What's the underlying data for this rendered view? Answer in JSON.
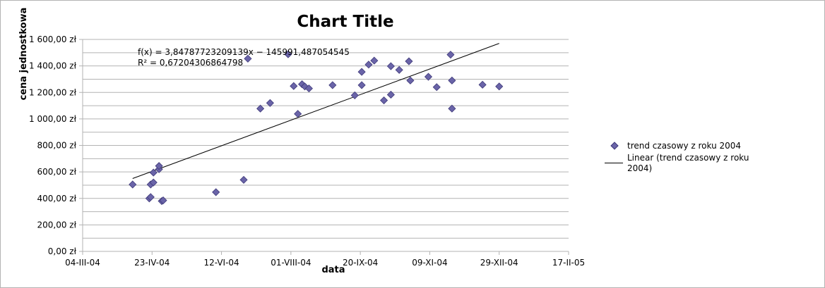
{
  "chart_data": {
    "type": "scatter",
    "title": "Chart Title",
    "xlabel": "data",
    "ylabel": "cena jednostkowa",
    "x_ticks": [
      "04-III-04",
      "23-IV-04",
      "12-VI-04",
      "01-VIII-04",
      "20-IX-04",
      "09-XI-04",
      "29-XII-04",
      "17-II-05"
    ],
    "x_tick_values": [
      "2004-03-04",
      "2004-04-23",
      "2004-06-12",
      "2004-08-01",
      "2004-09-20",
      "2004-11-09",
      "2004-12-29",
      "2005-02-17"
    ],
    "xlim": [
      "2004-03-04",
      "2005-02-17"
    ],
    "y_ticks": [
      "0,00 zł",
      "200,00 zł",
      "400,00 zł",
      "600,00 zł",
      "800,00 zł",
      "1 000,00 zł",
      "1 200,00 zł",
      "1 400,00 zł",
      "1 600,00 zł"
    ],
    "ylim": [
      0,
      1600
    ],
    "grid": "horizontal",
    "legend": "right",
    "series": [
      {
        "name": "trend czasowy z roku 2004",
        "color": "#6a64a8",
        "marker": "diamond",
        "points": [
          [
            "2004-04-09",
            505
          ],
          [
            "2004-04-21",
            400
          ],
          [
            "2004-04-22",
            410
          ],
          [
            "2004-04-22",
            505
          ],
          [
            "2004-04-24",
            520
          ],
          [
            "2004-04-24",
            595
          ],
          [
            "2004-04-28",
            620
          ],
          [
            "2004-04-28",
            645
          ],
          [
            "2004-04-30",
            380
          ],
          [
            "2004-05-01",
            385
          ],
          [
            "2004-06-08",
            447
          ],
          [
            "2004-06-28",
            540
          ],
          [
            "2004-07-01",
            1455
          ],
          [
            "2004-07-10",
            1078
          ],
          [
            "2004-07-17",
            1120
          ],
          [
            "2004-07-30",
            1488
          ],
          [
            "2004-08-03",
            1248
          ],
          [
            "2004-08-06",
            1038
          ],
          [
            "2004-08-09",
            1262
          ],
          [
            "2004-08-11",
            1245
          ],
          [
            "2004-08-14",
            1230
          ],
          [
            "2004-08-31",
            1255
          ],
          [
            "2004-09-16",
            1178
          ],
          [
            "2004-09-21",
            1255
          ],
          [
            "2004-09-21",
            1355
          ],
          [
            "2004-09-26",
            1410
          ],
          [
            "2004-09-30",
            1440
          ],
          [
            "2004-10-07",
            1140
          ],
          [
            "2004-10-12",
            1183
          ],
          [
            "2004-10-12",
            1398
          ],
          [
            "2004-10-18",
            1370
          ],
          [
            "2004-10-25",
            1435
          ],
          [
            "2004-10-26",
            1290
          ],
          [
            "2004-11-08",
            1318
          ],
          [
            "2004-11-14",
            1240
          ],
          [
            "2004-11-24",
            1485
          ],
          [
            "2004-11-25",
            1290
          ],
          [
            "2004-11-25",
            1078
          ],
          [
            "2004-12-17",
            1258
          ],
          [
            "2004-12-29",
            1245
          ]
        ]
      },
      {
        "name": "Linear (trend czasowy z roku 2004)",
        "color": "#000000",
        "type": "line",
        "points": [
          [
            "2004-04-09",
            550
          ],
          [
            "2004-12-29",
            1570
          ]
        ]
      }
    ],
    "annotations": [
      "f(x) = 3,84787723209139x − 145991,487054545",
      "R² = 0,67204306864798"
    ]
  }
}
